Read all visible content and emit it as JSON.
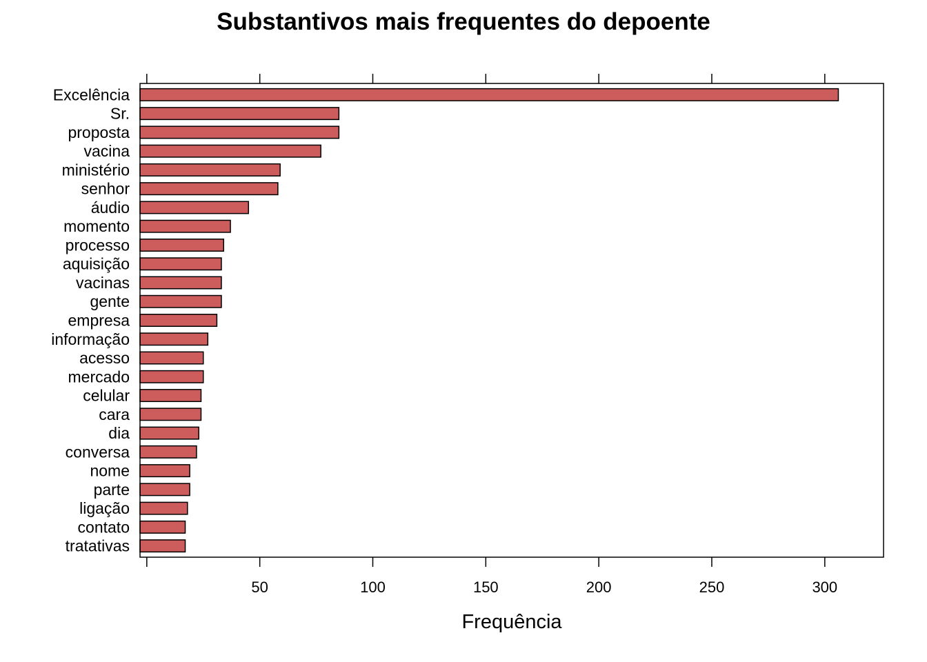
{
  "chart_data": {
    "type": "bar",
    "orientation": "horizontal",
    "title": "Substantivos mais frequentes do depoente",
    "xlabel": "Frequência",
    "ylabel": "",
    "xlim": [
      -3,
      326
    ],
    "xticks": [
      50,
      100,
      150,
      200,
      250,
      300
    ],
    "x_axis_ticks_top_and_bottom": true,
    "grid": false,
    "bar_color": "#cd5c5c",
    "categories": [
      "Excelência",
      "Sr.",
      "proposta",
      "vacina",
      "ministério",
      "senhor",
      "áudio",
      "momento",
      "processo",
      "aquisição",
      "vacinas",
      "gente",
      "empresa",
      "informação",
      "acesso",
      "mercado",
      "celular",
      "cara",
      "dia",
      "conversa",
      "nome",
      "parte",
      "ligação",
      "contato",
      "tratativas"
    ],
    "values": [
      306,
      85,
      85,
      77,
      59,
      58,
      45,
      37,
      34,
      33,
      33,
      33,
      31,
      27,
      25,
      25,
      24,
      24,
      23,
      22,
      19,
      19,
      18,
      17,
      17
    ]
  }
}
